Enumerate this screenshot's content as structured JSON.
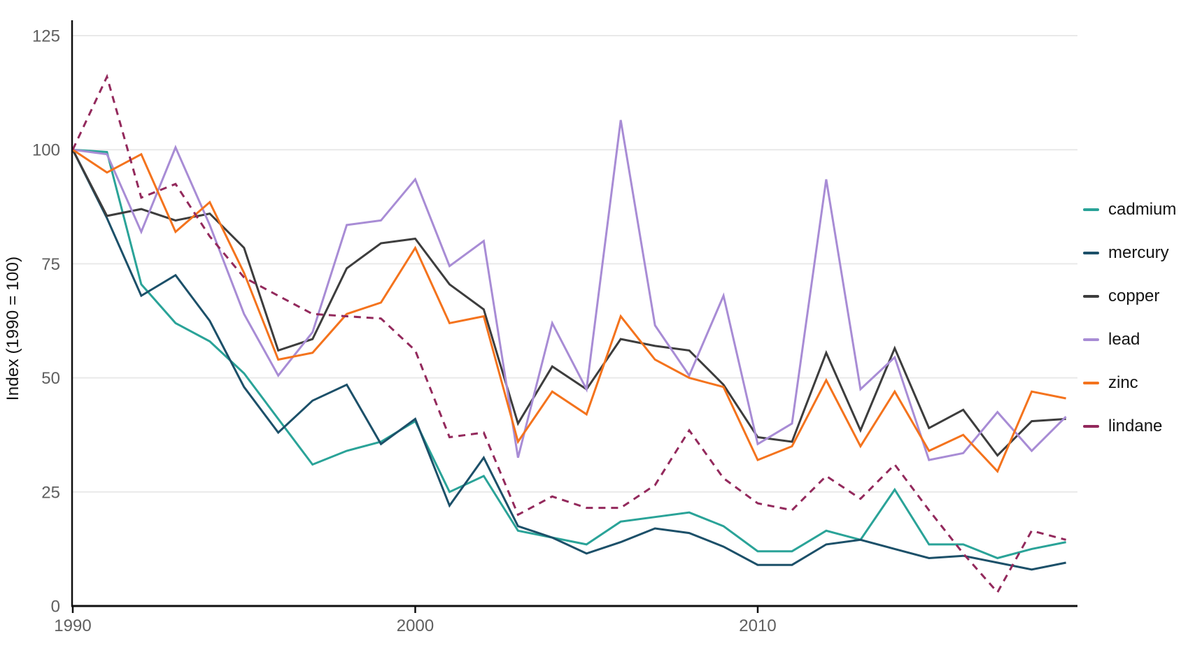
{
  "chart_data": {
    "type": "line",
    "title": "",
    "xlabel": "",
    "ylabel": "Index (1990 = 100)",
    "x": [
      1990,
      1991,
      1992,
      1993,
      1994,
      1995,
      1996,
      1997,
      1998,
      1999,
      2000,
      2001,
      2002,
      2003,
      2004,
      2005,
      2006,
      2007,
      2008,
      2009,
      2010,
      2011,
      2012,
      2013,
      2014,
      2015,
      2016,
      2017,
      2018,
      2019
    ],
    "x_ticks": [
      1990,
      2000,
      2010
    ],
    "y_ticks": [
      0,
      25,
      50,
      75,
      100,
      125
    ],
    "xlim": [
      1990,
      2019.4
    ],
    "ylim": [
      0,
      128
    ],
    "grid": "horizontal-only",
    "legend_position": "right",
    "series": [
      {
        "name": "cadmium",
        "color": "#2aa398",
        "dash": null,
        "values": [
          100,
          99.5,
          70.5,
          62,
          58,
          51,
          41,
          31,
          34,
          36,
          40.5,
          25,
          28.5,
          16.5,
          15,
          13.5,
          18.5,
          19.5,
          20.5,
          17.5,
          12,
          12,
          16.5,
          14.5,
          25.5,
          13.5,
          13.5,
          10.5,
          12.5,
          14
        ]
      },
      {
        "name": "mercury",
        "color": "#1c5069",
        "dash": null,
        "values": [
          100,
          85,
          68,
          72.5,
          62.5,
          48,
          38,
          45,
          48.5,
          35.5,
          41,
          22,
          32.5,
          17.5,
          15,
          11.5,
          14,
          17,
          16,
          13,
          9,
          9,
          13.5,
          14.5,
          12.5,
          10.5,
          11,
          9.5,
          8,
          9.5
        ]
      },
      {
        "name": "copper",
        "color": "#3d3d3d",
        "dash": null,
        "values": [
          100,
          85.5,
          87,
          84.5,
          86,
          78.5,
          56,
          58.5,
          74,
          79.5,
          80.5,
          70.5,
          65,
          40,
          52.5,
          47.5,
          58.5,
          57,
          56,
          48.5,
          37,
          36,
          55.5,
          38.5,
          56.5,
          39,
          43,
          33,
          40.5,
          41
        ]
      },
      {
        "name": "lead",
        "color": "#a88cd5",
        "dash": null,
        "values": [
          100,
          99,
          82,
          100.5,
          83.5,
          64,
          50.5,
          60,
          83.5,
          84.5,
          93.5,
          74.5,
          80,
          32.5,
          62,
          47.5,
          106.5,
          61.5,
          50.5,
          68,
          35.5,
          40,
          93.5,
          47.5,
          54.5,
          32,
          33.5,
          42.5,
          34,
          41.5
        ]
      },
      {
        "name": "zinc",
        "color": "#f4731d",
        "dash": null,
        "values": [
          100,
          95,
          99,
          82,
          88.5,
          73,
          54,
          55.5,
          64,
          66.5,
          78.5,
          62,
          63.5,
          36,
          47,
          42,
          63.5,
          54,
          50,
          48,
          32,
          35,
          49.5,
          35,
          47,
          34,
          37.5,
          29.5,
          47,
          45.5
        ]
      },
      {
        "name": "lindane",
        "color": "#93295c",
        "dash": "10 8",
        "values": [
          100,
          116,
          89.5,
          92.5,
          81,
          72,
          68,
          64,
          63.5,
          63,
          56,
          37,
          38,
          20,
          24,
          21.5,
          21.5,
          26.5,
          38.5,
          28,
          22.5,
          21,
          28.5,
          23.5,
          31,
          21,
          11.5,
          3,
          16.5,
          14.5
        ]
      }
    ],
    "colors": {
      "grid": "#e9e9e9",
      "axis": "#0f0f0f",
      "tick_text": "#5f5f5f",
      "label_text": "#141414"
    }
  }
}
